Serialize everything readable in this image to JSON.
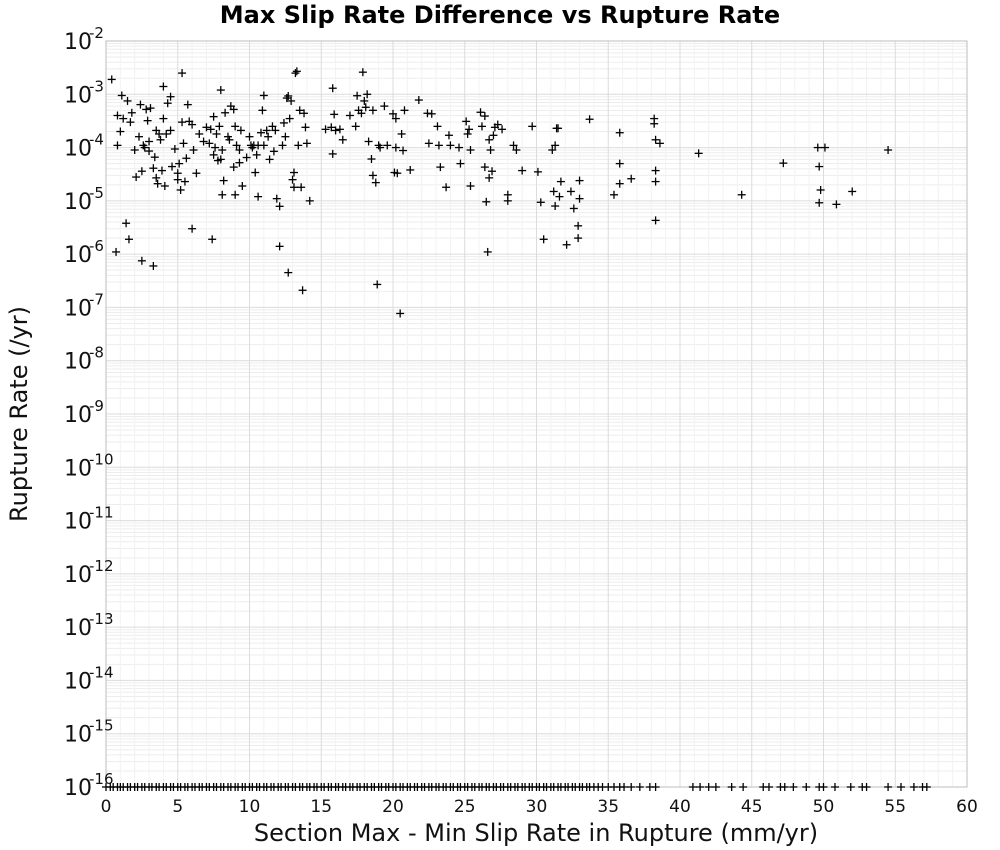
{
  "chart_data": {
    "type": "scatter",
    "title": "Max Slip Rate Difference vs Rupture Rate",
    "xlabel": "Section Max - Min Slip Rate in Rupture (mm/yr)",
    "ylabel": "Rupture Rate (/yr)",
    "xlim": [
      0,
      60
    ],
    "ylim": [
      1e-16,
      0.01
    ],
    "yscale": "log",
    "grid": true,
    "legend": "none",
    "marker": "plus",
    "marker_color": "#000000",
    "xticks": [
      "0",
      "5",
      "10",
      "15",
      "20",
      "25",
      "30",
      "35",
      "40",
      "45",
      "50",
      "55",
      "60"
    ],
    "yticks": [
      {
        "base": "10",
        "exp": "-2"
      },
      {
        "base": "10",
        "exp": "-3"
      },
      {
        "base": "10",
        "exp": "-4"
      },
      {
        "base": "10",
        "exp": "-5"
      },
      {
        "base": "10",
        "exp": "-6"
      },
      {
        "base": "10",
        "exp": "-7"
      },
      {
        "base": "10",
        "exp": "-8"
      },
      {
        "base": "10",
        "exp": "-9"
      },
      {
        "base": "10",
        "exp": "-10"
      },
      {
        "base": "10",
        "exp": "-11"
      },
      {
        "base": "10",
        "exp": "-12"
      },
      {
        "base": "10",
        "exp": "-13"
      },
      {
        "base": "10",
        "exp": "-14"
      },
      {
        "base": "10",
        "exp": "-15"
      },
      {
        "base": "10",
        "exp": "-16"
      }
    ],
    "points": [
      [
        0.4,
        0.0019
      ],
      [
        0.7,
        1.1e-06
      ],
      [
        0.8,
        0.0004
      ],
      [
        0.8,
        0.00011
      ],
      [
        1.0,
        0.0002
      ],
      [
        1.1,
        0.00095
      ],
      [
        1.2,
        0.00035
      ],
      [
        1.4,
        3.8e-06
      ],
      [
        1.5,
        0.00075
      ],
      [
        1.6,
        1.9e-06
      ],
      [
        1.7,
        0.0003
      ],
      [
        1.8,
        0.00045
      ],
      [
        2.0,
        9e-05
      ],
      [
        2.1,
        2.8e-05
      ],
      [
        2.3,
        0.00016
      ],
      [
        2.4,
        0.00064
      ],
      [
        2.5,
        3.6e-05
      ],
      [
        2.5,
        7.5e-07
      ],
      [
        2.6,
        0.00011
      ],
      [
        2.7,
        0.0001
      ],
      [
        2.8,
        0.00052
      ],
      [
        2.9,
        0.00032
      ],
      [
        3.0,
        0.00013
      ],
      [
        3.0,
        8.6e-05
      ],
      [
        3.1,
        0.00055
      ],
      [
        3.3,
        4.1e-05
      ],
      [
        3.3,
        6e-07
      ],
      [
        3.4,
        6.6e-05
      ],
      [
        3.5,
        2.7e-05
      ],
      [
        3.5,
        0.00021
      ],
      [
        3.6,
        2.1e-05
      ],
      [
        3.7,
        0.00018
      ],
      [
        3.8,
        0.00014
      ],
      [
        3.9,
        3.7e-05
      ],
      [
        4.0,
        0.0014
      ],
      [
        4.0,
        0.00035
      ],
      [
        4.1,
        1.9e-05
      ],
      [
        4.2,
        0.00018
      ],
      [
        4.3,
        0.00068
      ],
      [
        4.5,
        0.00021
      ],
      [
        4.5,
        0.0009
      ],
      [
        4.6,
        4.4e-05
      ],
      [
        4.8,
        9.4e-05
      ],
      [
        5.0,
        3.3e-05
      ],
      [
        5.0,
        2.5e-05
      ],
      [
        5.1,
        5e-05
      ],
      [
        5.2,
        1.6e-05
      ],
      [
        5.3,
        0.0025
      ],
      [
        5.3,
        0.0003
      ],
      [
        5.4,
        0.00012
      ],
      [
        5.5,
        2.3e-05
      ],
      [
        5.6,
        6.3e-05
      ],
      [
        5.7,
        0.00064
      ],
      [
        5.8,
        0.00031
      ],
      [
        6.0,
        0.00027
      ],
      [
        6.0,
        3e-06
      ],
      [
        6.1,
        9e-05
      ],
      [
        6.3,
        3.3e-05
      ],
      [
        6.5,
        0.00018
      ],
      [
        6.8,
        0.00013
      ],
      [
        7.0,
        0.00024
      ],
      [
        7.2,
        0.00012
      ],
      [
        7.3,
        0.00022
      ],
      [
        7.4,
        1.9e-06
      ],
      [
        7.5,
        0.00038
      ],
      [
        7.5,
        7.3e-05
      ],
      [
        7.6,
        0.0001
      ],
      [
        7.7,
        0.00018
      ],
      [
        7.8,
        5.7e-05
      ],
      [
        7.9,
        0.00025
      ],
      [
        8.0,
        6e-05
      ],
      [
        8.0,
        0.0012
      ],
      [
        8.1,
        9e-05
      ],
      [
        8.1,
        1.3e-05
      ],
      [
        8.2,
        2.4e-05
      ],
      [
        8.3,
        0.00045
      ],
      [
        8.5,
        0.00016
      ],
      [
        8.6,
        0.00014
      ],
      [
        8.7,
        0.0006
      ],
      [
        8.9,
        4.3e-05
      ],
      [
        8.9,
        0.00052
      ],
      [
        9.0,
        0.00025
      ],
      [
        9.0,
        1.3e-05
      ],
      [
        9.1,
        0.00011
      ],
      [
        9.3,
        9e-05
      ],
      [
        9.3,
        5.2e-05
      ],
      [
        9.4,
        0.00021
      ],
      [
        9.5,
        1.9e-05
      ],
      [
        9.8,
        6.5e-05
      ],
      [
        10.0,
        0.00016
      ],
      [
        10.1,
        0.00011
      ],
      [
        10.2,
        0.0001
      ],
      [
        10.3,
        0.00011
      ],
      [
        10.4,
        3.4e-05
      ],
      [
        10.5,
        7.3e-05
      ],
      [
        10.6,
        0.00011
      ],
      [
        10.6,
        1.2e-05
      ],
      [
        10.8,
        0.00019
      ],
      [
        10.9,
        0.0005
      ],
      [
        11.0,
        0.00095
      ],
      [
        11.0,
        0.00011
      ],
      [
        11.2,
        0.00021
      ],
      [
        11.3,
        0.00016
      ],
      [
        11.4,
        6e-05
      ],
      [
        11.6,
        0.00025
      ],
      [
        11.7,
        8.5e-05
      ],
      [
        11.8,
        0.00021
      ],
      [
        11.9,
        1.1e-05
      ],
      [
        12.1,
        7.9e-06
      ],
      [
        12.1,
        1.4e-06
      ],
      [
        12.3,
        0.00011
      ],
      [
        12.4,
        0.00029
      ],
      [
        12.5,
        0.00016
      ],
      [
        12.6,
        0.00085
      ],
      [
        12.7,
        0.00093
      ],
      [
        12.7,
        4.5e-07
      ],
      [
        12.8,
        0.00035
      ],
      [
        12.9,
        0.00075
      ],
      [
        13.0,
        2.5e-05
      ],
      [
        13.1,
        1.8e-05
      ],
      [
        13.1,
        3.4e-05
      ],
      [
        13.2,
        0.0025
      ],
      [
        13.3,
        0.0027
      ],
      [
        13.4,
        0.00011
      ],
      [
        13.5,
        0.0005
      ],
      [
        13.6,
        1.8e-05
      ],
      [
        13.7,
        2.1e-07
      ],
      [
        13.8,
        0.00044
      ],
      [
        13.9,
        0.00024
      ],
      [
        14.0,
        0.00012
      ],
      [
        14.2,
        1e-05
      ],
      [
        15.3,
        0.00022
      ],
      [
        15.7,
        0.00024
      ],
      [
        15.8,
        0.0013
      ],
      [
        15.8,
        7.6e-05
      ],
      [
        15.9,
        0.00042
      ],
      [
        16.0,
        0.00021
      ],
      [
        16.3,
        0.00022
      ],
      [
        16.5,
        0.00014
      ],
      [
        17.0,
        0.0004
      ],
      [
        17.4,
        0.00025
      ],
      [
        17.5,
        0.00094
      ],
      [
        17.6,
        0.0005
      ],
      [
        17.8,
        0.00044
      ],
      [
        17.9,
        0.0026
      ],
      [
        18.0,
        0.00075
      ],
      [
        18.1,
        0.00057
      ],
      [
        18.2,
        0.001
      ],
      [
        18.3,
        0.00013
      ],
      [
        18.5,
        6.1e-05
      ],
      [
        18.6,
        0.0005
      ],
      [
        18.6,
        3e-05
      ],
      [
        18.8,
        2.2e-05
      ],
      [
        18.9,
        2.7e-07
      ],
      [
        19.0,
        0.00011
      ],
      [
        19.1,
        0.0001
      ],
      [
        19.4,
        0.0006
      ],
      [
        19.6,
        0.00011
      ],
      [
        20.0,
        0.00043
      ],
      [
        20.1,
        3.4e-05
      ],
      [
        20.2,
        0.00035
      ],
      [
        20.2,
        0.0001
      ],
      [
        20.3,
        3.3e-05
      ],
      [
        20.5,
        7.7e-08
      ],
      [
        20.6,
        0.00018
      ],
      [
        20.7,
        8.8e-05
      ],
      [
        20.8,
        0.0005
      ],
      [
        21.2,
        3.8e-05
      ],
      [
        21.8,
        0.00078
      ],
      [
        22.4,
        0.00044
      ],
      [
        22.5,
        0.00012
      ],
      [
        22.7,
        0.00043
      ],
      [
        23.1,
        0.00025
      ],
      [
        23.2,
        0.00011
      ],
      [
        23.3,
        4.3e-05
      ],
      [
        23.7,
        1.8e-05
      ],
      [
        23.9,
        0.00017
      ],
      [
        24.0,
        0.00011
      ],
      [
        24.6,
        0.0001
      ],
      [
        24.7,
        5e-05
      ],
      [
        25.1,
        0.00031
      ],
      [
        25.2,
        0.00018
      ],
      [
        25.3,
        0.00022
      ],
      [
        25.4,
        9e-05
      ],
      [
        25.4,
        1.9e-05
      ],
      [
        26.1,
        0.00046
      ],
      [
        26.2,
        0.00025
      ],
      [
        26.4,
        0.00039
      ],
      [
        26.4,
        4.3e-05
      ],
      [
        26.5,
        9.6e-06
      ],
      [
        26.6,
        1.1e-06
      ],
      [
        26.7,
        0.00014
      ],
      [
        26.7,
        2.7e-05
      ],
      [
        26.8,
        9e-05
      ],
      [
        26.9,
        3.6e-05
      ],
      [
        27.0,
        0.00017
      ],
      [
        27.1,
        0.00024
      ],
      [
        27.3,
        0.00027
      ],
      [
        27.6,
        0.00022
      ],
      [
        28.0,
        1.3e-05
      ],
      [
        28.0,
        1e-05
      ],
      [
        28.4,
        0.00011
      ],
      [
        28.6,
        9e-05
      ],
      [
        29.0,
        3.7e-05
      ],
      [
        29.7,
        0.00025
      ],
      [
        30.1,
        3.5e-05
      ],
      [
        30.3,
        9.4e-06
      ],
      [
        30.5,
        1.9e-06
      ],
      [
        31.1,
        9e-05
      ],
      [
        31.2,
        1.5e-05
      ],
      [
        31.3,
        8e-06
      ],
      [
        31.3,
        0.00011
      ],
      [
        31.4,
        0.00023
      ],
      [
        31.5,
        0.00023
      ],
      [
        31.6,
        1.2e-05
      ],
      [
        31.7,
        2.3e-05
      ],
      [
        32.1,
        1.5e-06
      ],
      [
        32.4,
        1.5e-05
      ],
      [
        32.6,
        7.2e-06
      ],
      [
        32.9,
        3.4e-06
      ],
      [
        32.9,
        2e-06
      ],
      [
        33.0,
        2.4e-05
      ],
      [
        33.0,
        1.1e-05
      ],
      [
        33.7,
        0.00034
      ],
      [
        35.4,
        1.3e-05
      ],
      [
        35.8,
        0.00019
      ],
      [
        35.8,
        5e-05
      ],
      [
        35.8,
        2.1e-05
      ],
      [
        36.6,
        2.6e-05
      ],
      [
        38.2,
        0.00035
      ],
      [
        38.2,
        0.00028
      ],
      [
        38.3,
        0.00014
      ],
      [
        38.3,
        3.7e-05
      ],
      [
        38.3,
        2.3e-05
      ],
      [
        38.3,
        4.3e-06
      ],
      [
        38.6,
        0.00012
      ],
      [
        41.3,
        7.8e-05
      ],
      [
        44.3,
        1.3e-05
      ],
      [
        47.2,
        5.1e-05
      ],
      [
        49.6,
        0.0001
      ],
      [
        49.7,
        4.4e-05
      ],
      [
        49.8,
        1.6e-05
      ],
      [
        49.7,
        9.2e-06
      ],
      [
        50.1,
        0.0001
      ],
      [
        50.9,
        8.6e-06
      ],
      [
        52.0,
        1.5e-05
      ],
      [
        54.5,
        9e-05
      ]
    ],
    "floor_points_x": [
      0.0,
      0.3,
      0.5,
      0.8,
      1.0,
      1.2,
      1.5,
      1.7,
      2.0,
      2.2,
      2.5,
      2.7,
      3.0,
      3.2,
      3.5,
      3.7,
      4.0,
      4.2,
      4.5,
      4.7,
      5.0,
      5.2,
      5.5,
      5.7,
      6.0,
      6.2,
      6.5,
      6.7,
      7.0,
      7.2,
      7.5,
      7.7,
      8.0,
      8.2,
      8.5,
      8.7,
      9.0,
      9.2,
      9.5,
      9.7,
      10.0,
      10.2,
      10.5,
      10.7,
      11.0,
      11.2,
      11.5,
      11.7,
      12.0,
      12.2,
      12.5,
      12.7,
      13.0,
      13.2,
      13.5,
      13.7,
      14.0,
      14.2,
      14.5,
      14.7,
      15.0,
      15.2,
      15.5,
      15.7,
      16.0,
      16.2,
      16.5,
      16.7,
      17.0,
      17.2,
      17.5,
      17.7,
      18.0,
      18.2,
      18.5,
      18.7,
      19.0,
      19.2,
      19.5,
      19.7,
      20.0,
      20.2,
      20.5,
      20.7,
      21.0,
      21.2,
      21.5,
      21.7,
      22.0,
      22.2,
      22.5,
      22.7,
      23.0,
      23.2,
      23.5,
      23.7,
      24.0,
      24.2,
      24.5,
      24.7,
      25.0,
      25.2,
      25.5,
      25.7,
      26.0,
      26.2,
      26.5,
      26.7,
      27.0,
      27.2,
      27.5,
      27.7,
      28.0,
      28.2,
      28.5,
      28.7,
      29.0,
      29.2,
      29.5,
      29.7,
      30.0,
      30.2,
      30.5,
      30.7,
      31.0,
      31.2,
      31.5,
      31.7,
      32.0,
      32.2,
      32.5,
      32.7,
      33.0,
      33.2,
      33.5,
      33.7,
      34.0,
      34.3,
      34.6,
      35.0,
      35.4,
      35.8,
      36.1,
      36.6,
      37.2,
      37.9,
      38.3,
      40.9,
      41.4,
      42.0,
      42.5,
      43.6,
      44.4,
      45.8,
      46.2,
      47.0,
      47.3,
      47.9,
      48.8,
      49.7,
      50.0,
      50.8,
      51.9,
      52.7,
      53.0,
      54.5,
      55.4,
      56.3,
      56.9,
      57.2
    ]
  }
}
